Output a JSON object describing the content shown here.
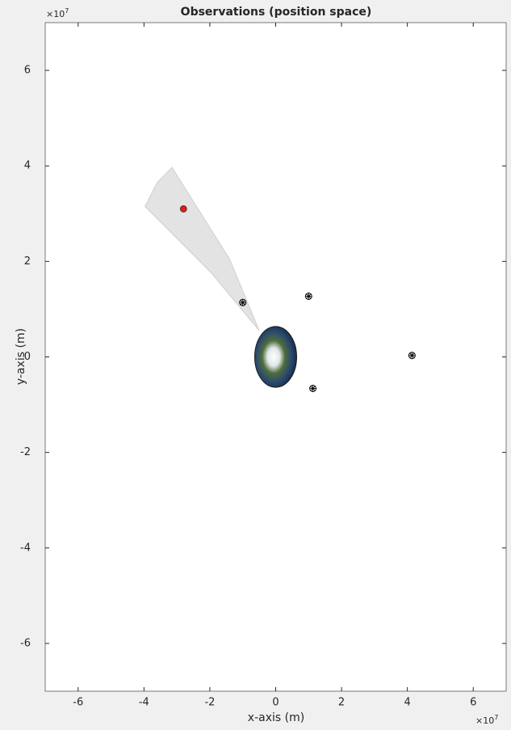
{
  "chart_data": {
    "type": "scatter",
    "title": "Observations (position space)",
    "x_label": "x-axis (m)",
    "y_label": "y-axis (m)",
    "x_multiplier": {
      "base": "×10",
      "exponent": "7"
    },
    "y_multiplier": {
      "base": "×10",
      "exponent": "7"
    },
    "xlim": [
      -7,
      7
    ],
    "ylim": [
      -7,
      7
    ],
    "xticks": [
      -6,
      -4,
      -2,
      0,
      2,
      4,
      6
    ],
    "yticks": [
      -6,
      -4,
      -2,
      0,
      2,
      4,
      6
    ],
    "grid": false,
    "field_of_view": {
      "color": "#d9d9d9",
      "x": [
        -0.5,
        -1.96,
        -3.97,
        -3.6,
        -3.15,
        -1.4,
        -0.5
      ],
      "y": [
        0.55,
        1.76,
        3.15,
        3.65,
        3.97,
        2.05,
        0.55
      ]
    },
    "earth": {
      "center": [
        0,
        0
      ],
      "radius": 0.637
    },
    "series": [
      {
        "color": "#e41a1c",
        "marker": "circle",
        "x": [
          -2.8
        ],
        "y": [
          3.1
        ]
      },
      {
        "color": "#000000",
        "marker": "circled-star",
        "x": [
          -1.0,
          1.0,
          4.14,
          1.13
        ],
        "y": [
          1.14,
          1.27,
          0.03,
          -0.66
        ]
      }
    ]
  }
}
